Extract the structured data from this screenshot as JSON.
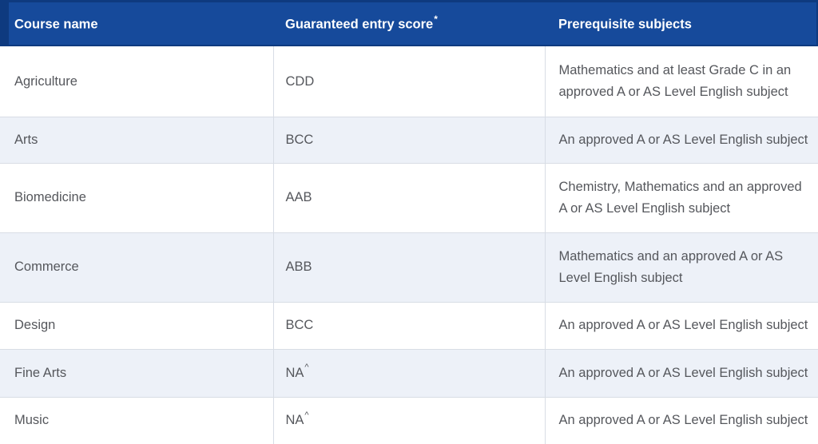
{
  "colors": {
    "header_bg": "#164a9b",
    "header_accent": "#0e3a7f",
    "header_text": "#ffffff",
    "row_alt_bg": "#edf1f8",
    "border": "#d8dde5",
    "text": "#55575c"
  },
  "table": {
    "columns": [
      {
        "label": "Course name",
        "sup": ""
      },
      {
        "label": "Guaranteed entry score",
        "sup": "*"
      },
      {
        "label": "Prerequisite subjects",
        "sup": ""
      }
    ],
    "rows": [
      {
        "course": "Agriculture",
        "score": "CDD",
        "score_sup": "",
        "prerequisite": "Mathematics and at least Grade C in an approved A or AS Level English subject"
      },
      {
        "course": "Arts",
        "score": "BCC",
        "score_sup": "",
        "prerequisite": "An approved A or AS Level English subject"
      },
      {
        "course": "Biomedicine",
        "score": "AAB",
        "score_sup": "",
        "prerequisite": "Chemistry, Mathematics and an approved A or AS Level English subject"
      },
      {
        "course": "Commerce",
        "score": "ABB",
        "score_sup": "",
        "prerequisite": "Mathematics and an approved A or AS Level English subject"
      },
      {
        "course": "Design",
        "score": "BCC",
        "score_sup": "",
        "prerequisite": "An approved A or AS Level English subject"
      },
      {
        "course": "Fine Arts",
        "score": "NA",
        "score_sup": "^",
        "prerequisite": "An approved A or AS Level English subject"
      },
      {
        "course": "Music",
        "score": "NA",
        "score_sup": "^",
        "prerequisite": "An approved A or AS Level English subject"
      }
    ]
  }
}
